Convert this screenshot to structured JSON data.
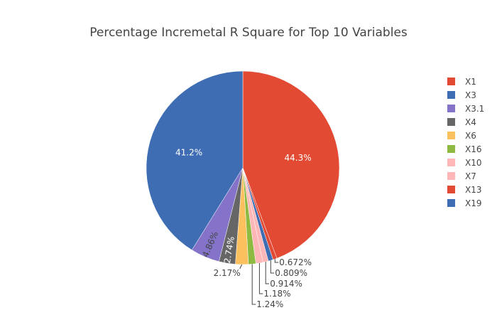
{
  "chart_data": {
    "type": "pie",
    "title": "Percentage Incremetal R Square for Top 10 Variables",
    "legend_position": "right",
    "slices": [
      {
        "label": "X1",
        "value": 44.3,
        "display": "44.3%",
        "color": "#e24a33"
      },
      {
        "label": "X13",
        "value": 0.672,
        "display": "0.672%",
        "color": "#e24a33"
      },
      {
        "label": "X19",
        "value": 0.809,
        "display": "0.809%",
        "color": "#3f6db3"
      },
      {
        "label": "X7",
        "value": 0.914,
        "display": "0.914%",
        "color": "#ffb6b6"
      },
      {
        "label": "X10",
        "value": 1.18,
        "display": "1.18%",
        "color": "#ffb6b6"
      },
      {
        "label": "X16",
        "value": 1.24,
        "display": "1.24%",
        "color": "#8eba42"
      },
      {
        "label": "X6",
        "value": 2.17,
        "display": "2.17%",
        "color": "#fbc15e"
      },
      {
        "label": "X4",
        "value": 2.74,
        "display": "2.74%",
        "color": "#666666"
      },
      {
        "label": "X3.1",
        "value": 4.86,
        "display": "4.86%",
        "color": "#8473c9"
      },
      {
        "label": "X3",
        "value": 41.2,
        "display": "41.2%",
        "color": "#3f6db3"
      }
    ],
    "legend_order": [
      "X1",
      "X3",
      "X3.1",
      "X4",
      "X6",
      "X16",
      "X10",
      "X7",
      "X13",
      "X19"
    ]
  }
}
